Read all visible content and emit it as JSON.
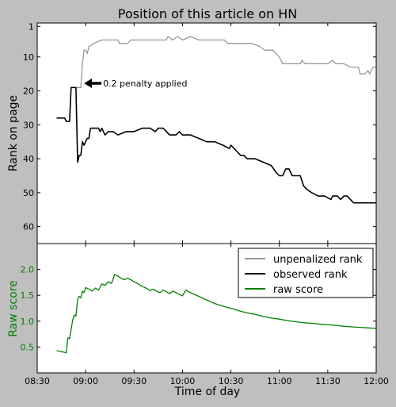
{
  "chart_data": [
    {
      "type": "line",
      "title": "Position of this article on HN",
      "ylabel": "Rank on page",
      "ylim": [
        65,
        0
      ],
      "yticks": [
        1,
        10,
        20,
        30,
        40,
        50,
        60
      ],
      "x_unit": "minutes since midnight",
      "xlim": [
        510,
        720
      ],
      "annotation": {
        "text": "0.2 penalty applied",
        "x": 538,
        "y": 18
      },
      "series": [
        {
          "name": "unpenalized rank",
          "color": "#999999",
          "points": [
            [
              534,
              19
            ],
            [
              537,
              19
            ],
            [
              538,
              12
            ],
            [
              539,
              8
            ],
            [
              540,
              8
            ],
            [
              541,
              9
            ],
            [
              542,
              7
            ],
            [
              545,
              6
            ],
            [
              550,
              5
            ],
            [
              560,
              5
            ],
            [
              561,
              6
            ],
            [
              566,
              6
            ],
            [
              568,
              5
            ],
            [
              575,
              5
            ],
            [
              580,
              5
            ],
            [
              590,
              5
            ],
            [
              591,
              4
            ],
            [
              594,
              5
            ],
            [
              597,
              4
            ],
            [
              600,
              5
            ],
            [
              605,
              4
            ],
            [
              610,
              5
            ],
            [
              620,
              5
            ],
            [
              626,
              5
            ],
            [
              628,
              6
            ],
            [
              635,
              6
            ],
            [
              643,
              6
            ],
            [
              648,
              7
            ],
            [
              651,
              8
            ],
            [
              656,
              8
            ],
            [
              660,
              10
            ],
            [
              661,
              11
            ],
            [
              662,
              12
            ],
            [
              673,
              12
            ],
            [
              674,
              11
            ],
            [
              676,
              12
            ],
            [
              690,
              12
            ],
            [
              693,
              11
            ],
            [
              695,
              12
            ],
            [
              700,
              12
            ],
            [
              704,
              13
            ],
            [
              709,
              13
            ],
            [
              710,
              15
            ],
            [
              713,
              15
            ],
            [
              715,
              14
            ],
            [
              716,
              15
            ],
            [
              718,
              13
            ],
            [
              720,
              13
            ]
          ]
        },
        {
          "name": "observed rank",
          "color": "#000000",
          "points": [
            [
              522,
              28
            ],
            [
              527,
              28
            ],
            [
              528,
              29
            ],
            [
              530,
              29
            ],
            [
              531,
              19
            ],
            [
              534,
              19
            ],
            [
              535,
              41
            ],
            [
              536,
              39
            ],
            [
              537,
              39
            ],
            [
              538,
              35
            ],
            [
              539,
              36
            ],
            [
              540,
              35
            ],
            [
              541,
              34
            ],
            [
              542,
              34
            ],
            [
              543,
              31
            ],
            [
              548,
              31
            ],
            [
              549,
              32
            ],
            [
              550,
              31
            ],
            [
              552,
              33
            ],
            [
              554,
              32
            ],
            [
              557,
              32
            ],
            [
              560,
              33
            ],
            [
              565,
              32
            ],
            [
              570,
              32
            ],
            [
              575,
              31
            ],
            [
              580,
              31
            ],
            [
              583,
              32
            ],
            [
              585,
              31
            ],
            [
              588,
              31
            ],
            [
              592,
              33
            ],
            [
              596,
              33
            ],
            [
              598,
              32
            ],
            [
              600,
              33
            ],
            [
              605,
              33
            ],
            [
              610,
              34
            ],
            [
              615,
              35
            ],
            [
              620,
              35
            ],
            [
              625,
              36
            ],
            [
              629,
              37
            ],
            [
              630,
              36
            ],
            [
              632,
              37
            ],
            [
              634,
              38
            ],
            [
              636,
              39
            ],
            [
              638,
              39
            ],
            [
              640,
              40
            ],
            [
              642,
              40
            ],
            [
              645,
              40
            ],
            [
              650,
              41
            ],
            [
              655,
              42
            ],
            [
              658,
              44
            ],
            [
              660,
              45
            ],
            [
              662,
              45
            ],
            [
              664,
              43
            ],
            [
              666,
              43
            ],
            [
              668,
              45
            ],
            [
              673,
              45
            ],
            [
              675,
              48
            ],
            [
              677,
              49
            ],
            [
              680,
              50
            ],
            [
              684,
              51
            ],
            [
              688,
              51
            ],
            [
              692,
              52
            ],
            [
              693,
              51
            ],
            [
              696,
              51
            ],
            [
              698,
              52
            ],
            [
              700,
              51
            ],
            [
              702,
              51
            ],
            [
              704,
              52
            ],
            [
              706,
              53
            ],
            [
              720,
              53
            ]
          ]
        }
      ]
    },
    {
      "type": "line",
      "xlabel": "Time of day",
      "ylabel": "Raw score",
      "ylim": [
        0,
        2.5
      ],
      "yticks": [
        0.5,
        1.0,
        1.5,
        2.0
      ],
      "xlim": [
        510,
        720
      ],
      "xticks": [
        {
          "v": 510,
          "label": "08:30"
        },
        {
          "v": 540,
          "label": "09:00"
        },
        {
          "v": 570,
          "label": "09:30"
        },
        {
          "v": 600,
          "label": "10:00"
        },
        {
          "v": 630,
          "label": "10:30"
        },
        {
          "v": 660,
          "label": "11:00"
        },
        {
          "v": 690,
          "label": "11:30"
        },
        {
          "v": 720,
          "label": "12:00"
        }
      ],
      "legend": {
        "position": "top-right",
        "entries": [
          {
            "label": "unpenalized rank",
            "color": "#999999"
          },
          {
            "label": "observed rank",
            "color": "#000000"
          },
          {
            "label": "raw score",
            "color": "#008000"
          }
        ]
      },
      "series": [
        {
          "name": "raw score",
          "color": "#008000",
          "points": [
            [
              522,
              0.43
            ],
            [
              525,
              0.41
            ],
            [
              528,
              0.39
            ],
            [
              529,
              0.68
            ],
            [
              530,
              0.66
            ],
            [
              532,
              1.02
            ],
            [
              533,
              1.12
            ],
            [
              534,
              1.1
            ],
            [
              535,
              1.42
            ],
            [
              536,
              1.48
            ],
            [
              537,
              1.45
            ],
            [
              538,
              1.58
            ],
            [
              539,
              1.55
            ],
            [
              540,
              1.65
            ],
            [
              542,
              1.62
            ],
            [
              544,
              1.58
            ],
            [
              546,
              1.64
            ],
            [
              548,
              1.6
            ],
            [
              550,
              1.72
            ],
            [
              552,
              1.69
            ],
            [
              554,
              1.76
            ],
            [
              556,
              1.73
            ],
            [
              558,
              1.9
            ],
            [
              560,
              1.87
            ],
            [
              562,
              1.83
            ],
            [
              564,
              1.8
            ],
            [
              566,
              1.83
            ],
            [
              568,
              1.8
            ],
            [
              570,
              1.76
            ],
            [
              572,
              1.73
            ],
            [
              574,
              1.69
            ],
            [
              576,
              1.66
            ],
            [
              578,
              1.63
            ],
            [
              580,
              1.59
            ],
            [
              582,
              1.62
            ],
            [
              584,
              1.58
            ],
            [
              586,
              1.55
            ],
            [
              588,
              1.6
            ],
            [
              590,
              1.57
            ],
            [
              592,
              1.53
            ],
            [
              594,
              1.58
            ],
            [
              596,
              1.55
            ],
            [
              598,
              1.52
            ],
            [
              600,
              1.49
            ],
            [
              602,
              1.6
            ],
            [
              605,
              1.55
            ],
            [
              610,
              1.48
            ],
            [
              615,
              1.41
            ],
            [
              620,
              1.34
            ],
            [
              625,
              1.29
            ],
            [
              630,
              1.25
            ],
            [
              635,
              1.2
            ],
            [
              640,
              1.16
            ],
            [
              645,
              1.13
            ],
            [
              650,
              1.09
            ],
            [
              655,
              1.06
            ],
            [
              660,
              1.04
            ],
            [
              665,
              1.01
            ],
            [
              670,
              0.99
            ],
            [
              675,
              0.97
            ],
            [
              680,
              0.96
            ],
            [
              685,
              0.94
            ],
            [
              690,
              0.93
            ],
            [
              695,
              0.92
            ],
            [
              700,
              0.9
            ],
            [
              705,
              0.89
            ],
            [
              710,
              0.88
            ],
            [
              715,
              0.87
            ],
            [
              720,
              0.86
            ]
          ]
        }
      ]
    }
  ]
}
